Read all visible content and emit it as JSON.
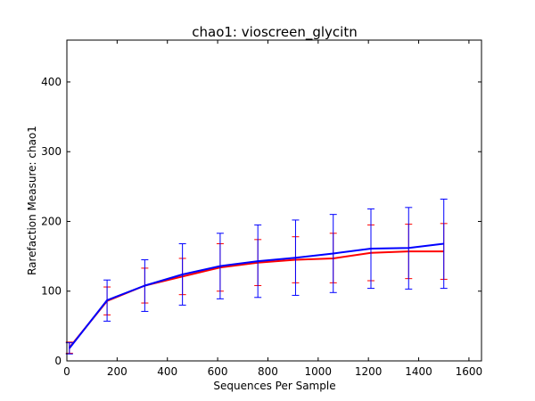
{
  "chart_data": {
    "type": "line",
    "title": "chao1: vioscreen_glycitn",
    "xlabel": "Sequences Per Sample",
    "ylabel": "Rarefaction Measure: chao1",
    "xlim": [
      0,
      1650
    ],
    "ylim": [
      0,
      460
    ],
    "xticks": [
      0,
      200,
      400,
      600,
      800,
      1000,
      1200,
      1400,
      1600
    ],
    "yticks": [
      0,
      100,
      200,
      300,
      400
    ],
    "grid": false,
    "x": [
      10,
      160,
      310,
      460,
      610,
      760,
      910,
      1060,
      1210,
      1360,
      1500
    ],
    "series": [
      {
        "color": "#ff0000",
        "values": [
          19,
          86,
          108,
          121,
          134,
          141,
          145,
          147,
          155,
          157,
          157
        ],
        "err_low": [
          11,
          66,
          83,
          95,
          100,
          108,
          112,
          112,
          115,
          118,
          117
        ],
        "err_high": [
          27,
          106,
          133,
          147,
          168,
          174,
          178,
          183,
          195,
          196,
          197
        ]
      },
      {
        "color": "#0000ff",
        "values": [
          18,
          87,
          108,
          124,
          136,
          143,
          148,
          154,
          161,
          162,
          168
        ],
        "err_low": [
          10,
          57,
          71,
          80,
          89,
          91,
          94,
          98,
          104,
          103,
          104
        ],
        "err_high": [
          26,
          116,
          145,
          168,
          183,
          195,
          202,
          210,
          218,
          220,
          232
        ]
      }
    ]
  }
}
